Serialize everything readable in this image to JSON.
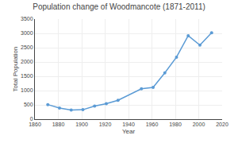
{
  "chart_data": {
    "type": "line",
    "title": "Population change of Woodmancote (1871-2011)",
    "xlabel": "Year",
    "ylabel": "Total Population",
    "x": [
      1871,
      1881,
      1891,
      1901,
      1911,
      1921,
      1931,
      1951,
      1961,
      1971,
      1981,
      1991,
      2001,
      2011
    ],
    "values": [
      510,
      390,
      320,
      330,
      460,
      540,
      660,
      1060,
      1110,
      1620,
      2170,
      2920,
      2590,
      3020
    ],
    "color": "#5b9bd5",
    "marker": "circle",
    "xlim": [
      1860,
      2020
    ],
    "ylim": [
      0,
      3500
    ],
    "xticks": [
      1860,
      1880,
      1900,
      1920,
      1940,
      1960,
      1980,
      2000,
      2020
    ],
    "yticks": [
      0,
      500,
      1000,
      1500,
      2000,
      2500,
      3000,
      3500
    ],
    "grid": true
  }
}
